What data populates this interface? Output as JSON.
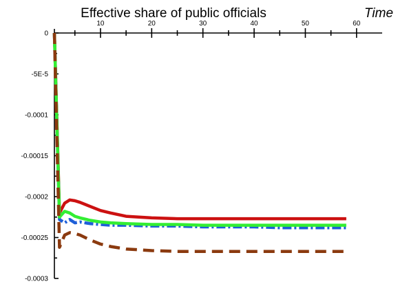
{
  "chart_data": {
    "type": "line",
    "title": "Effective share of public officials",
    "xlabel": "Time",
    "ylabel": "",
    "xlim": [
      1,
      65
    ],
    "ylim": [
      -0.0003,
      0
    ],
    "x_axis_position": "top",
    "x_ticks": [
      10,
      20,
      30,
      40,
      50,
      60
    ],
    "x_tick_labels": [
      "10",
      "20",
      "30",
      "40",
      "50",
      "60"
    ],
    "y_ticks": [
      0,
      -5e-05,
      -0.0001,
      -0.00015,
      -0.0002,
      -0.00025,
      -0.0003
    ],
    "y_tick_labels": [
      "0",
      "-5E-5",
      "-0.0001",
      "-0.00015",
      "-0.0002",
      "-0.00025",
      "-0.0003"
    ],
    "grid": false,
    "legend": "none",
    "x": [
      1,
      2,
      3,
      4,
      5,
      6,
      8,
      10,
      12,
      15,
      20,
      25,
      30,
      35,
      40,
      45,
      50,
      55,
      58
    ],
    "series": [
      {
        "color": "#cc1111",
        "style": "solid",
        "values": [
          0,
          -0.00022,
          -0.000208,
          -0.000204,
          -0.000205,
          -0.000207,
          -0.000212,
          -0.000217,
          -0.00022,
          -0.000224,
          -0.000226,
          -0.000227,
          -0.000227,
          -0.000227,
          -0.000227,
          -0.000227,
          -0.000227,
          -0.000227,
          -0.000227
        ]
      },
      {
        "color": "#1e5fd8",
        "style": "dashdot",
        "values": [
          0,
          -0.000228,
          -0.000232,
          -0.000228,
          -0.000232,
          -0.000231,
          -0.000233,
          -0.000234,
          -0.000235,
          -0.000235,
          -0.000236,
          -0.000236,
          -0.000237,
          -0.000237,
          -0.000237,
          -0.000238,
          -0.000238,
          -0.000238,
          -0.000238
        ]
      },
      {
        "color": "#33ee33",
        "style": "solid",
        "values": [
          0,
          -0.000225,
          -0.000218,
          -0.00022,
          -0.000224,
          -0.000226,
          -0.000229,
          -0.000231,
          -0.000232,
          -0.000233,
          -0.000234,
          -0.000234,
          -0.000235,
          -0.000235,
          -0.000235,
          -0.000235,
          -0.000235,
          -0.000235,
          -0.000235
        ]
      },
      {
        "color": "#8b3a0f",
        "style": "dashed",
        "values": [
          0,
          -0.000262,
          -0.000247,
          -0.000244,
          -0.000245,
          -0.000247,
          -0.000253,
          -0.000258,
          -0.000261,
          -0.000264,
          -0.000266,
          -0.000267,
          -0.000267,
          -0.000267,
          -0.000267,
          -0.000267,
          -0.000267,
          -0.000267,
          -0.000267
        ]
      }
    ]
  }
}
